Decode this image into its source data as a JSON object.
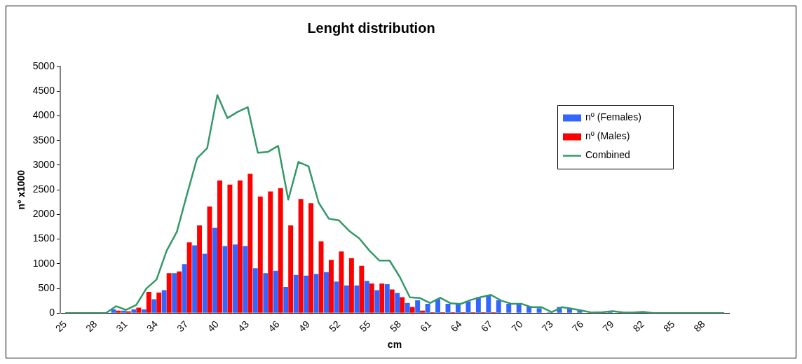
{
  "chart_data": {
    "type": "bar",
    "title": "Lenght distribution",
    "xlabel": "cm",
    "ylabel": "nº x1000",
    "categories": [
      "25",
      null,
      null,
      "28",
      null,
      null,
      "31",
      null,
      null,
      "34",
      null,
      null,
      "37",
      null,
      null,
      "40",
      null,
      null,
      "43",
      null,
      null,
      "46",
      null,
      null,
      "49",
      null,
      null,
      "52",
      null,
      null,
      "55",
      null,
      null,
      "58",
      null,
      null,
      "61",
      null,
      null,
      "64",
      null,
      null,
      "67",
      null,
      null,
      "70",
      null,
      null,
      "73",
      null,
      null,
      "76",
      null,
      null,
      "79",
      null,
      null,
      "82",
      null,
      null,
      "85",
      null,
      null,
      "88",
      null,
      null
    ],
    "series": [
      {
        "name": "nº (Females)",
        "color": "#3366ff",
        "values": [
          0,
          0,
          0,
          0,
          0,
          75,
          50,
          75,
          75,
          280,
          465,
          810,
          995,
          1375,
          1205,
          1730,
          1360,
          1390,
          1360,
          910,
          810,
          860,
          530,
          775,
          760,
          795,
          830,
          640,
          560,
          560,
          655,
          465,
          585,
          410,
          205,
          260,
          190,
          285,
          190,
          180,
          240,
          325,
          365,
          260,
          190,
          180,
          135,
          100,
          15,
          125,
          90,
          55,
          null,
          null,
          30,
          null,
          0,
          20,
          0,
          0,
          0,
          0,
          0,
          0,
          0,
          0
        ]
      },
      {
        "name": "nº (Males)",
        "color": "#ff0000",
        "values": [
          0,
          0,
          0,
          0,
          0,
          50,
          35,
          110,
          430,
          415,
          810,
          845,
          1435,
          1780,
          2160,
          2690,
          2605,
          2690,
          2825,
          2365,
          2465,
          2535,
          1780,
          2315,
          2230,
          1455,
          1080,
          1250,
          1115,
          960,
          600,
          600,
          480,
          325,
          125,
          50,
          20,
          20,
          20,
          20,
          20,
          20,
          20,
          0,
          0,
          0,
          0,
          0,
          0,
          0,
          0,
          0,
          0,
          0,
          0,
          0,
          0,
          0,
          0,
          0,
          0,
          0,
          0,
          0,
          0,
          0
        ]
      },
      {
        "name": "Combined",
        "type": "line",
        "color": "#339966",
        "values": [
          0,
          0,
          0,
          0,
          0,
          140,
          65,
          165,
          500,
          680,
          1265,
          1645,
          2400,
          3140,
          3345,
          4420,
          3955,
          4080,
          4175,
          3250,
          3270,
          3390,
          2300,
          3065,
          2975,
          2240,
          1915,
          1880,
          1670,
          1515,
          1270,
          1065,
          1065,
          735,
          320,
          305,
          205,
          310,
          200,
          185,
          265,
          325,
          370,
          255,
          190,
          190,
          120,
          120,
          20,
          120,
          90,
          50,
          10,
          20,
          40,
          15,
          10,
          25,
          0,
          0,
          0,
          0,
          0,
          0,
          0,
          0
        ]
      }
    ],
    "ylim": [
      0,
      5000
    ],
    "yticks": [
      0,
      500,
      1000,
      1500,
      2000,
      2500,
      3000,
      3500,
      4000,
      4500,
      5000
    ],
    "grid": false,
    "legend": "top right",
    "marker": "none",
    "line_style": "solid"
  }
}
